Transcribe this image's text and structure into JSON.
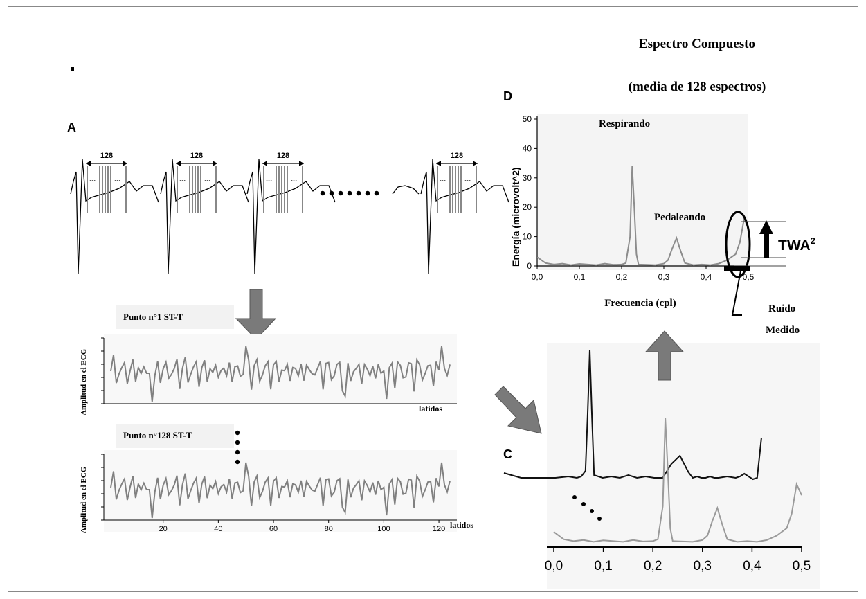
{
  "panels": {
    "A": {
      "letter": "A",
      "window_label": "128",
      "dots": "..."
    },
    "B": {
      "top_label": "Punto n°1 ST-T",
      "bottom_label": "Punto n°128 ST-T",
      "ylabel": "Amplitud en el ECG",
      "xlabel_top": "latidos",
      "xlabel_bottom": "latidos",
      "xticks": [
        "20",
        "40",
        "60",
        "80",
        "100",
        "120"
      ]
    },
    "C": {
      "letter": "C",
      "xticks": [
        "0,0",
        "0,1",
        "0,2",
        "0,3",
        "0,4",
        "0,5"
      ]
    },
    "D": {
      "letter": "D",
      "title_line1": "Espectro Compuesto",
      "title_line2": "(media de 128 espectros)",
      "ylabel": "Energía (microvolt^2)",
      "xlabel": "Frecuencia (cpl)",
      "yticks": [
        "0",
        "10",
        "20",
        "30",
        "40",
        "50"
      ],
      "xticks": [
        "0,0",
        "0,1",
        "0,2",
        "0,3",
        "0,4",
        "0,5"
      ],
      "annotation_respirando": "Respirando",
      "annotation_pedaleando": "Pedaleando",
      "twa_label": "TWA",
      "twa_sup": "2",
      "noise_line1": "Ruido",
      "noise_line2": "Medido"
    }
  },
  "chart_data": [
    {
      "type": "line",
      "title": "Espectro Compuesto (media de 128 espectros)",
      "xlabel": "Frecuencia (cpl)",
      "ylabel": "Energía (microvolt^2)",
      "xlim": [
        0,
        0.5
      ],
      "ylim": [
        0,
        50
      ],
      "series": [
        {
          "x": [
            0.0,
            0.02,
            0.04,
            0.06,
            0.08,
            0.1,
            0.12,
            0.14,
            0.16,
            0.18,
            0.2,
            0.21,
            0.22,
            0.225,
            0.23,
            0.235,
            0.24,
            0.26,
            0.28,
            0.3,
            0.31,
            0.32,
            0.33,
            0.34,
            0.35,
            0.37,
            0.39,
            0.41,
            0.43,
            0.45,
            0.47,
            0.48,
            0.49,
            0.5
          ],
          "values": [
            3,
            1,
            0.5,
            0.8,
            0.3,
            0.7,
            0.5,
            0.3,
            0.8,
            0.4,
            0.5,
            1,
            10,
            34,
            20,
            4,
            0.5,
            0.4,
            0.3,
            0.8,
            2,
            6,
            9.5,
            5,
            1,
            0.3,
            0.5,
            0.3,
            0.8,
            2,
            4,
            8,
            16,
            13
          ]
        }
      ]
    },
    {
      "type": "line",
      "xlim": [
        0,
        0.5
      ],
      "series": [
        {
          "x": [
            0.0,
            0.02,
            0.04,
            0.06,
            0.08,
            0.1,
            0.12,
            0.14,
            0.16,
            0.18,
            0.2,
            0.21,
            0.22,
            0.225,
            0.23,
            0.235,
            0.24,
            0.26,
            0.28,
            0.3,
            0.31,
            0.32,
            0.33,
            0.34,
            0.35,
            0.37,
            0.39,
            0.41,
            0.43,
            0.45,
            0.47,
            0.48,
            0.49,
            0.5
          ],
          "values": [
            3,
            1,
            0.5,
            0.8,
            0.3,
            0.7,
            0.5,
            0.3,
            0.8,
            0.4,
            0.5,
            1,
            10,
            34,
            20,
            4,
            0.5,
            0.4,
            0.3,
            0.8,
            2,
            6,
            9.5,
            5,
            1,
            0.3,
            0.5,
            0.3,
            0.8,
            2,
            4,
            8,
            16,
            13
          ]
        }
      ]
    }
  ]
}
